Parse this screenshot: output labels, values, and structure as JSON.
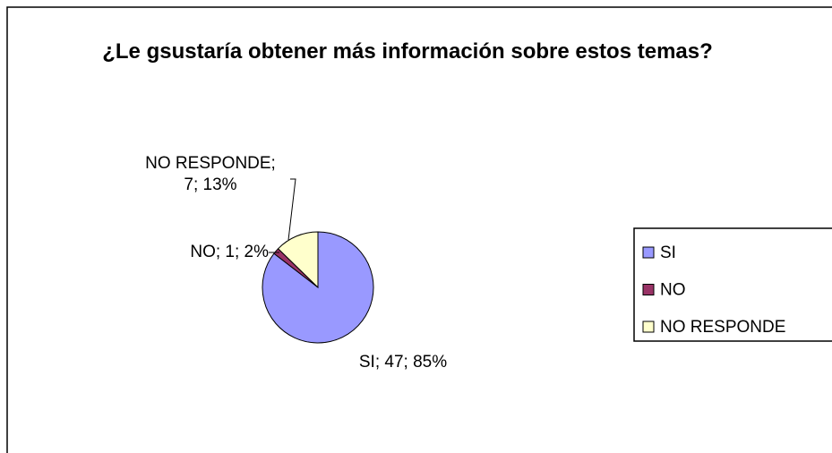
{
  "chart_data": {
    "type": "pie",
    "title": "¿Le gsustaría obtener más información sobre estos temas?",
    "categories": [
      "SI",
      "NO",
      "NO RESPONDE"
    ],
    "values": [
      47,
      1,
      7
    ],
    "value_labels": [
      "SI; 47; 85%",
      "NO; 1; 2%",
      "NO RESPONDE; 7; 13%"
    ],
    "colors": [
      "#9999ff",
      "#993366",
      "#ffffcc"
    ],
    "legend": "right"
  }
}
